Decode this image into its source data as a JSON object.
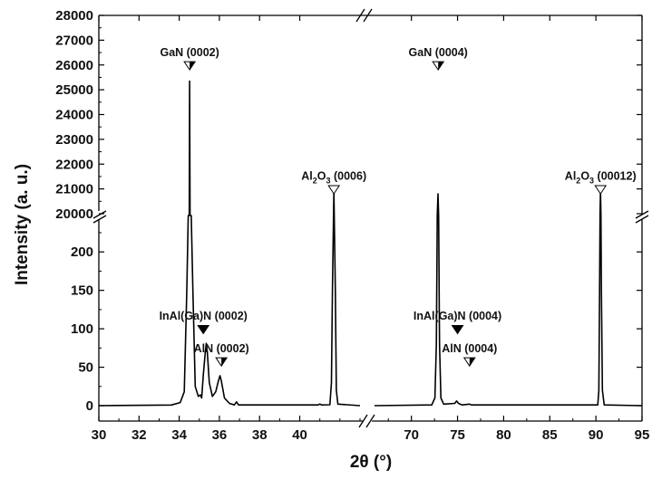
{
  "chart_data": {
    "type": "line",
    "title": "",
    "xlabel": "2θ (°)",
    "ylabel": "Intensity (a. u.)",
    "x_axis": {
      "segments": [
        {
          "range": [
            30,
            43
          ],
          "ticks": [
            "30",
            "32",
            "34",
            "36",
            "38",
            "40"
          ],
          "tick_values": [
            30,
            32,
            34,
            36,
            38,
            40
          ]
        },
        {
          "range": [
            66,
            95
          ],
          "ticks": [
            "70",
            "75",
            "80",
            "85",
            "90",
            "95"
          ],
          "tick_values": [
            70,
            75,
            80,
            85,
            90,
            95
          ]
        }
      ],
      "break": "between 41.5 and 68"
    },
    "y_axis": {
      "segments": [
        {
          "range": [
            -20,
            245
          ],
          "ticks": [
            "0",
            "50",
            "100",
            "150",
            "200"
          ],
          "tick_values": [
            0,
            50,
            100,
            150,
            200
          ]
        },
        {
          "range": [
            20000,
            28000
          ],
          "ticks": [
            "20000",
            "21000",
            "22000",
            "23000",
            "24000",
            "25000",
            "26000",
            "27000",
            "28000"
          ],
          "tick_values": [
            20000,
            21000,
            22000,
            23000,
            24000,
            25000,
            26000,
            27000,
            28000
          ]
        }
      ],
      "break": "between 245 and 20000"
    },
    "series": [
      {
        "segment": 0,
        "points": [
          [
            30,
            0
          ],
          [
            33.6,
            0.8
          ],
          [
            34.05,
            4
          ],
          [
            34.25,
            18
          ],
          [
            34.38,
            150
          ],
          [
            34.45,
            900
          ],
          [
            34.5,
            6000
          ],
          [
            34.52,
            25350
          ],
          [
            34.54,
            6000
          ],
          [
            34.6,
            900
          ],
          [
            34.68,
            150
          ],
          [
            34.8,
            25
          ],
          [
            34.95,
            12
          ],
          [
            35.05,
            14
          ],
          [
            35.12,
            10
          ],
          [
            35.2,
            40
          ],
          [
            35.3,
            70
          ],
          [
            35.35,
            81
          ],
          [
            35.4,
            70
          ],
          [
            35.5,
            30
          ],
          [
            35.65,
            12
          ],
          [
            35.82,
            18
          ],
          [
            35.95,
            32
          ],
          [
            36.03,
            39
          ],
          [
            36.1,
            32
          ],
          [
            36.25,
            10
          ],
          [
            36.5,
            3
          ],
          [
            36.75,
            1
          ],
          [
            36.85,
            5
          ],
          [
            36.95,
            1
          ],
          [
            40.9,
            1
          ],
          [
            41.0,
            2
          ],
          [
            41.1,
            1
          ],
          [
            41.5,
            1.2
          ],
          [
            41.58,
            30
          ],
          [
            41.63,
            150
          ],
          [
            41.68,
            3000
          ],
          [
            41.7,
            20900
          ],
          [
            41.72,
            3000
          ],
          [
            41.77,
            150
          ],
          [
            41.82,
            20
          ],
          [
            41.9,
            2
          ],
          [
            43,
            0
          ]
        ]
      },
      {
        "segment": 1,
        "points": [
          [
            66,
            0
          ],
          [
            72.2,
            1
          ],
          [
            72.55,
            10
          ],
          [
            72.7,
            80
          ],
          [
            72.8,
            2500
          ],
          [
            72.88,
            20800
          ],
          [
            72.95,
            2500
          ],
          [
            73.05,
            80
          ],
          [
            73.2,
            10
          ],
          [
            73.5,
            2
          ],
          [
            74.7,
            3
          ],
          [
            74.9,
            6
          ],
          [
            75.1,
            3
          ],
          [
            75.5,
            1
          ],
          [
            76.3,
            2
          ],
          [
            76.5,
            1
          ],
          [
            90.2,
            1
          ],
          [
            90.32,
            20
          ],
          [
            90.4,
            150
          ],
          [
            90.45,
            3000
          ],
          [
            90.5,
            20950
          ],
          [
            90.55,
            3000
          ],
          [
            90.6,
            150
          ],
          [
            90.7,
            20
          ],
          [
            90.9,
            1
          ],
          [
            95,
            0
          ]
        ]
      }
    ],
    "annotations": [
      {
        "segment": 0,
        "x": 34.52,
        "y_seg": 1,
        "y": 26000,
        "label": "GaN (0002)",
        "marker": "half-filled-triangle"
      },
      {
        "segment": 1,
        "x": 72.9,
        "y_seg": 1,
        "y": 26000,
        "label": "GaN (0004)",
        "marker": "half-filled-triangle"
      },
      {
        "segment": 0,
        "x": 41.7,
        "y_seg": 1,
        "y": 21000,
        "label": "Al",
        "sub": "2",
        "mid": "O",
        "sub2": "3",
        "tail": " (0006)",
        "marker": "open-triangle"
      },
      {
        "segment": 1,
        "x": 90.5,
        "y_seg": 1,
        "y": 21000,
        "label": "Al",
        "sub": "2",
        "mid": "O",
        "sub2": "3",
        "tail": " (00012)",
        "marker": "open-triangle"
      },
      {
        "segment": 0,
        "x": 35.2,
        "y_seg": 0,
        "y": 100,
        "label": "InAl(Ga)N (0002)",
        "marker": "filled-triangle"
      },
      {
        "segment": 0,
        "x": 36.1,
        "y_seg": 0,
        "y": 58,
        "label": "AlN (0002)",
        "marker": "half-filled-triangle"
      },
      {
        "segment": 1,
        "x": 75.0,
        "y_seg": 0,
        "y": 100,
        "label": "InAl(Ga)N (0004)",
        "marker": "filled-triangle"
      },
      {
        "segment": 1,
        "x": 76.3,
        "y_seg": 0,
        "y": 58,
        "label": "AlN (0004)",
        "marker": "half-filled-triangle"
      }
    ],
    "line_color": "#000000",
    "grid": false,
    "legend": "none"
  }
}
